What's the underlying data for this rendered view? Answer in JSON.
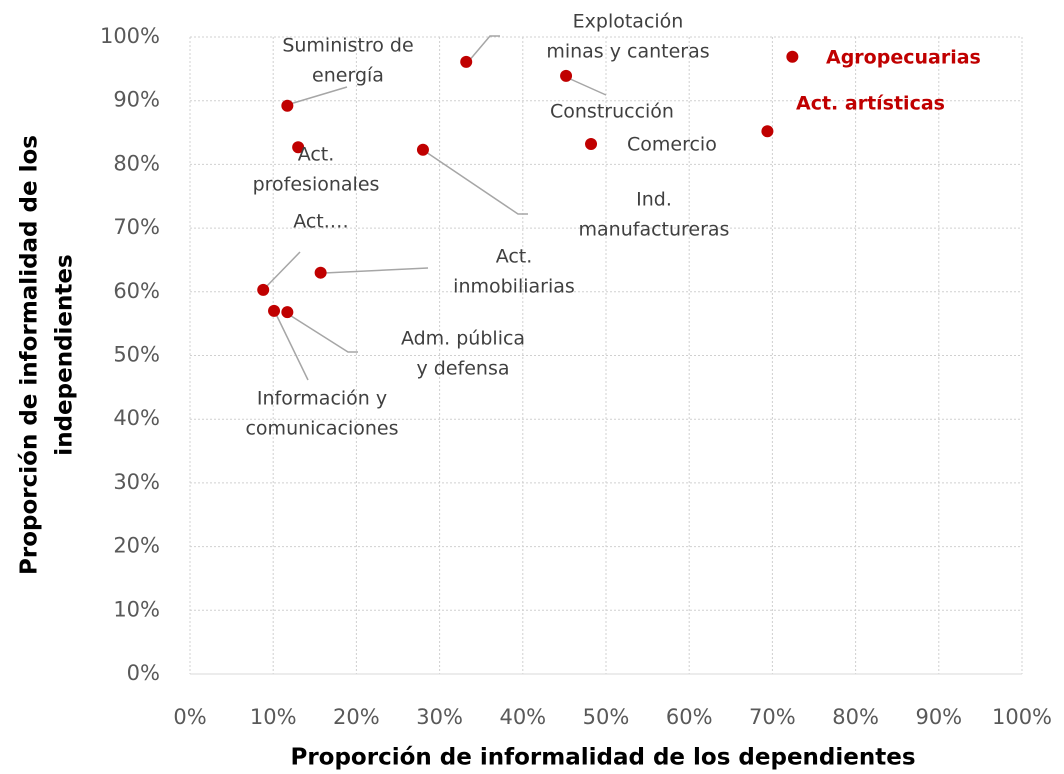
{
  "chart_data": {
    "type": "scatter",
    "x_label": "Proporción de informalidad de los dependientes",
    "y_label": [
      "Proporción de informalidad de los",
      "independientes"
    ],
    "color": "#c00000",
    "xlim": [
      0,
      100
    ],
    "ylim": [
      0,
      100
    ],
    "xticks": [
      {
        "value": 0,
        "label": "0%"
      },
      {
        "value": 10,
        "label": "10%"
      },
      {
        "value": 20,
        "label": "20%"
      },
      {
        "value": 30,
        "label": "30%"
      },
      {
        "value": 40,
        "label": "40%"
      },
      {
        "value": 50,
        "label": "50%"
      },
      {
        "value": 60,
        "label": "60%"
      },
      {
        "value": 70,
        "label": "70%"
      },
      {
        "value": 80,
        "label": "80%"
      },
      {
        "value": 90,
        "label": "90%"
      },
      {
        "value": 100,
        "label": "100%"
      }
    ],
    "yticks": [
      {
        "value": 0,
        "label": "0%"
      },
      {
        "value": 10,
        "label": "10%"
      },
      {
        "value": 20,
        "label": "20%"
      },
      {
        "value": 30,
        "label": "30%"
      },
      {
        "value": 40,
        "label": "40%"
      },
      {
        "value": 50,
        "label": "50%"
      },
      {
        "value": 60,
        "label": "60%"
      },
      {
        "value": 70,
        "label": "70%"
      },
      {
        "value": 80,
        "label": "80%"
      },
      {
        "value": 90,
        "label": "90%"
      },
      {
        "value": 100,
        "label": "100%"
      }
    ],
    "grid": true,
    "points": [
      {
        "label": [
          "Agropecuarias"
        ],
        "x": 72.4,
        "y": 96.9,
        "label_color": "#c00000",
        "label_weight": "bold"
      },
      {
        "label": [
          "Act. artísticas"
        ],
        "x": 69.4,
        "y": 85.2,
        "label_color": "#c00000",
        "label_weight": "bold"
      },
      {
        "label": [
          "Comercio"
        ],
        "x": 48.2,
        "y": 83.2
      },
      {
        "label": [
          "Construcción"
        ],
        "x": 45.2,
        "y": 93.9
      },
      {
        "label": [
          "Explotación",
          "minas y canteras"
        ],
        "x": 33.2,
        "y": 96.1
      },
      {
        "label": [
          "Suministro de",
          "energía"
        ],
        "x": 11.7,
        "y": 89.2
      },
      {
        "label": [
          "Act.",
          "profesionales"
        ],
        "x": 13.0,
        "y": 82.7
      },
      {
        "label": [
          "Ind.",
          "manufactureras"
        ],
        "x": 28.0,
        "y": 82.3
      },
      {
        "label": [
          "Act.",
          "inmobiliarias"
        ],
        "x": 15.7,
        "y": 63.0
      },
      {
        "label": [
          "Act.…"
        ],
        "x": 8.8,
        "y": 60.3
      },
      {
        "label": [
          "Información y",
          "comunicaciones"
        ],
        "x": 10.1,
        "y": 57.0
      },
      {
        "label": [
          "Adm. pública",
          "y defensa"
        ],
        "x": 11.7,
        "y": 56.8
      }
    ]
  }
}
